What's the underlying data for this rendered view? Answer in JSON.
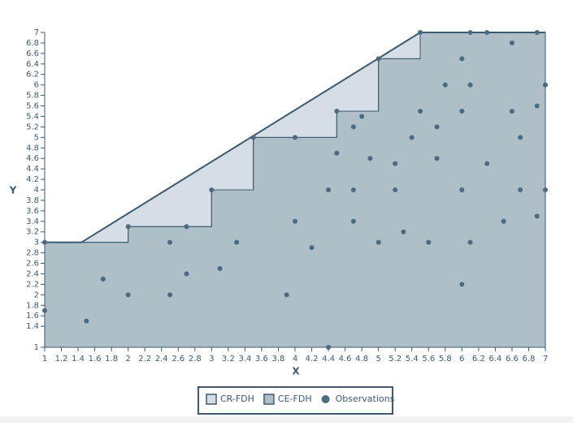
{
  "chart_data": {
    "type": "scatter",
    "x_label": "X",
    "y_label": "Y",
    "xlim": [
      1,
      7
    ],
    "ylim": [
      1,
      7
    ],
    "xticks": [
      1,
      1.2,
      1.4,
      1.6,
      1.8,
      2,
      2.2,
      2.4,
      2.6,
      2.8,
      3,
      3.2,
      3.4,
      3.6,
      3.8,
      4,
      4.2,
      4.4,
      4.6,
      4.8,
      5,
      5.2,
      5.4,
      5.6,
      5.8,
      6,
      6.2,
      6.4,
      6.6,
      6.8,
      7
    ],
    "yticks": [
      1,
      1.4,
      1.6,
      1.8,
      2,
      2.2,
      2.4,
      2.6,
      2.8,
      3,
      3.2,
      3.4,
      3.6,
      3.8,
      4,
      4.2,
      4.4,
      4.6,
      4.8,
      5,
      5.2,
      5.4,
      5.6,
      5.8,
      6,
      6.2,
      6.4,
      6.6,
      6.8,
      7
    ],
    "series": [
      {
        "name": "CR-FDH",
        "color": "#d5dee4",
        "kind": "area",
        "x": [
          1,
          1.44,
          5.5,
          7
        ],
        "values": [
          3,
          3,
          7,
          7
        ]
      },
      {
        "name": "CE-FDH",
        "color": "#aebfc8",
        "kind": "area",
        "x": [
          1,
          2,
          2,
          3,
          3,
          3.5,
          3.5,
          4.5,
          4.5,
          5,
          5,
          5.5,
          5.5,
          7
        ],
        "values": [
          3,
          3,
          3.3,
          3.3,
          4,
          4,
          5,
          5,
          5.5,
          5.5,
          6.5,
          6.5,
          7,
          7
        ]
      },
      {
        "name": "Observations",
        "color": "#4a6b80",
        "kind": "points",
        "x": [
          1,
          1,
          1.5,
          1.7,
          2,
          2,
          2.5,
          2.5,
          2.7,
          2.7,
          3,
          3.1,
          3.3,
          3.5,
          3.9,
          4,
          4,
          4.2,
          4.4,
          4.4,
          4.5,
          4.5,
          4.7,
          4.7,
          4.7,
          4.8,
          4.9,
          5,
          5,
          5.2,
          5.2,
          5.3,
          5.4,
          5.5,
          5.5,
          5.6,
          5.7,
          5.7,
          5.8,
          6,
          6,
          6,
          6,
          6.1,
          6.1,
          6.1,
          6.3,
          6.3,
          6.5,
          6.6,
          6.6,
          6.7,
          6.7,
          6.9,
          6.9,
          6.9,
          7,
          7
        ],
        "values": [
          3,
          1.7,
          1.5,
          2.3,
          3.3,
          2,
          3,
          2,
          3.3,
          2.4,
          4,
          2.5,
          3,
          5,
          2,
          5,
          3.4,
          2.9,
          1,
          4,
          5.5,
          4.7,
          5.2,
          4,
          3.4,
          5.4,
          4.6,
          6.5,
          3,
          4.5,
          4,
          3.2,
          5,
          7,
          5.5,
          3,
          5.2,
          4.6,
          6,
          6.5,
          5.5,
          4,
          2.2,
          7,
          6,
          3,
          7,
          4.5,
          3.4,
          6.8,
          5.5,
          5,
          4,
          7,
          5.6,
          3.5,
          6,
          4
        ]
      }
    ]
  }
}
